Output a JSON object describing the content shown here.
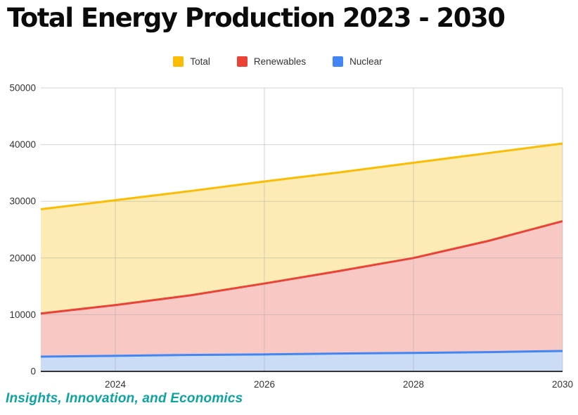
{
  "title": "Total Energy Production 2023 - 2030",
  "footer": {
    "text": "Insights, Innovation, and Economics",
    "color": "#0da3a3"
  },
  "legend": [
    {
      "label": "Total",
      "color": "#FBBC04"
    },
    {
      "label": "Renewables",
      "color": "#EA4335"
    },
    {
      "label": "Nuclear",
      "color": "#4285F4"
    }
  ],
  "colors": {
    "grid": "#9aa0a6",
    "axis_baseline": "#333333",
    "tick_text": "#333333",
    "title_text": "#0b0b0b"
  },
  "chart_data": {
    "type": "area",
    "title": "Total Energy Production 2023 - 2030",
    "x": [
      2023,
      2024,
      2025,
      2026,
      2027,
      2028,
      2029,
      2030
    ],
    "series": [
      {
        "name": "Total",
        "color": "#FBBC04",
        "fill": "#FDEBB5",
        "values": [
          28600,
          30200,
          31800,
          33500,
          35100,
          36800,
          38500,
          40200
        ]
      },
      {
        "name": "Renewables",
        "color": "#EA4335",
        "fill": "#F8C8C4",
        "values": [
          10200,
          11700,
          13400,
          15500,
          17700,
          20000,
          23000,
          26500
        ]
      },
      {
        "name": "Nuclear",
        "color": "#4285F4",
        "fill": "#CADCF6",
        "values": [
          2600,
          2750,
          2900,
          3000,
          3150,
          3250,
          3400,
          3600
        ]
      }
    ],
    "xlabel": "",
    "ylabel": "",
    "ylim": [
      0,
      50000
    ],
    "yticks": [
      0,
      10000,
      20000,
      30000,
      40000,
      50000
    ],
    "ytick_labels": [
      "0",
      "10000",
      "20000",
      "30000",
      "40000",
      "50000"
    ],
    "xtick_years": [
      2024,
      2026,
      2028,
      2030
    ],
    "xtick_labels": [
      "2024",
      "2026",
      "2028",
      "2030"
    ],
    "grid": true,
    "legend_position": "top"
  }
}
